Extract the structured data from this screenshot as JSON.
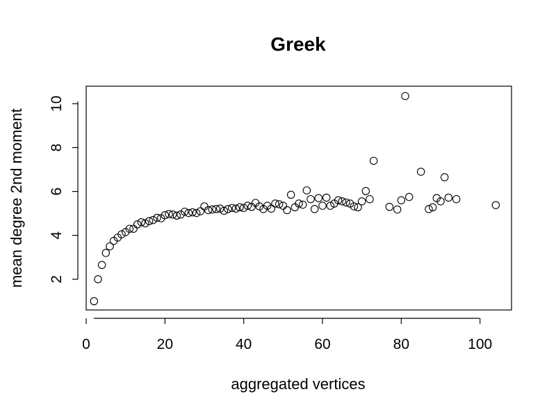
{
  "chart_data": {
    "type": "scatter",
    "title": "Greek",
    "xlabel": "aggregated vertices",
    "ylabel": "mean degree 2nd moment",
    "xlim": [
      0,
      108
    ],
    "ylim": [
      0.6,
      10.8
    ],
    "xticks": [
      0,
      20,
      40,
      60,
      80,
      100
    ],
    "yticks": [
      2,
      4,
      6,
      8,
      10
    ],
    "grid": false,
    "marker": "open-circle",
    "color": "#000000",
    "points": [
      [
        2,
        1.0
      ],
      [
        3,
        2.0
      ],
      [
        4,
        2.65
      ],
      [
        5,
        3.2
      ],
      [
        6,
        3.5
      ],
      [
        7,
        3.75
      ],
      [
        8,
        3.9
      ],
      [
        9,
        4.05
      ],
      [
        10,
        4.15
      ],
      [
        11,
        4.3
      ],
      [
        12,
        4.3
      ],
      [
        13,
        4.5
      ],
      [
        14,
        4.6
      ],
      [
        15,
        4.55
      ],
      [
        16,
        4.65
      ],
      [
        17,
        4.7
      ],
      [
        18,
        4.8
      ],
      [
        19,
        4.78
      ],
      [
        20,
        4.92
      ],
      [
        21,
        4.97
      ],
      [
        22,
        4.95
      ],
      [
        23,
        4.9
      ],
      [
        24,
        4.95
      ],
      [
        25,
        5.08
      ],
      [
        26,
        5.02
      ],
      [
        27,
        5.05
      ],
      [
        28,
        5.02
      ],
      [
        29,
        5.1
      ],
      [
        30,
        5.32
      ],
      [
        31,
        5.15
      ],
      [
        32,
        5.18
      ],
      [
        33,
        5.2
      ],
      [
        34,
        5.22
      ],
      [
        35,
        5.12
      ],
      [
        36,
        5.2
      ],
      [
        37,
        5.25
      ],
      [
        38,
        5.22
      ],
      [
        39,
        5.28
      ],
      [
        40,
        5.25
      ],
      [
        41,
        5.35
      ],
      [
        42,
        5.3
      ],
      [
        43,
        5.48
      ],
      [
        44,
        5.32
      ],
      [
        45,
        5.2
      ],
      [
        46,
        5.35
      ],
      [
        47,
        5.22
      ],
      [
        48,
        5.45
      ],
      [
        49,
        5.42
      ],
      [
        50,
        5.35
      ],
      [
        51,
        5.15
      ],
      [
        52,
        5.85
      ],
      [
        53,
        5.28
      ],
      [
        54,
        5.45
      ],
      [
        55,
        5.4
      ],
      [
        56,
        6.05
      ],
      [
        57,
        5.65
      ],
      [
        58,
        5.2
      ],
      [
        59,
        5.7
      ],
      [
        60,
        5.35
      ],
      [
        61,
        5.72
      ],
      [
        62,
        5.35
      ],
      [
        63,
        5.45
      ],
      [
        64,
        5.6
      ],
      [
        65,
        5.55
      ],
      [
        66,
        5.5
      ],
      [
        67,
        5.45
      ],
      [
        68,
        5.32
      ],
      [
        69,
        5.28
      ],
      [
        70,
        5.55
      ],
      [
        71,
        6.02
      ],
      [
        72,
        5.65
      ],
      [
        73,
        7.4
      ],
      [
        77,
        5.3
      ],
      [
        79,
        5.18
      ],
      [
        80,
        5.6
      ],
      [
        81,
        10.35
      ],
      [
        82,
        5.75
      ],
      [
        85,
        6.9
      ],
      [
        87,
        5.2
      ],
      [
        88,
        5.28
      ],
      [
        89,
        5.7
      ],
      [
        90,
        5.55
      ],
      [
        91,
        6.65
      ],
      [
        92,
        5.72
      ],
      [
        94,
        5.65
      ],
      [
        104,
        5.38
      ]
    ]
  }
}
